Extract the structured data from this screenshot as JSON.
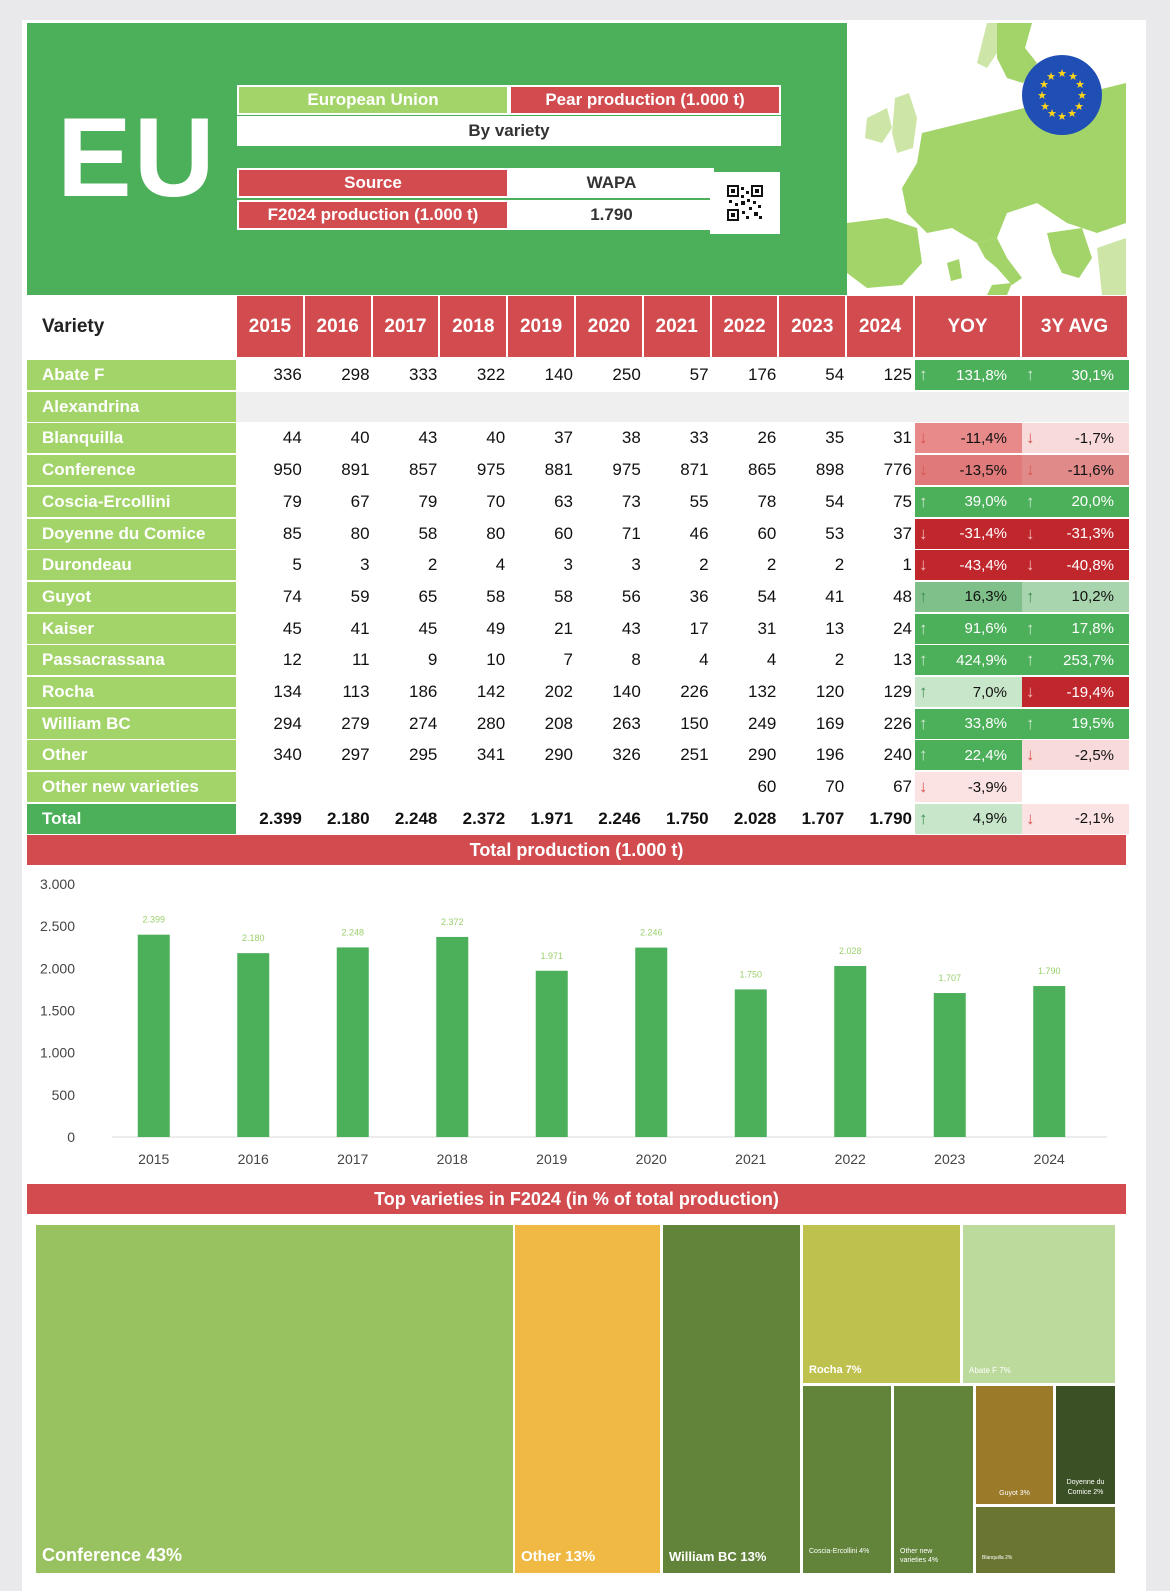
{
  "header": {
    "region_code": "EU",
    "region_name": "European Union",
    "product": "Pear production (1.000 t)",
    "breakdown": "By variety",
    "source_label": "Source",
    "source_value": "WAPA",
    "production_label": "F2024 production (1.000 t)",
    "production_value": "1.790"
  },
  "table": {
    "variety_header": "Variety",
    "years": [
      "2015",
      "2016",
      "2017",
      "2018",
      "2019",
      "2020",
      "2021",
      "2022",
      "2023",
      "2024"
    ],
    "yoy_header": "YOY",
    "avg_header": "3Y AVG",
    "rows": [
      {
        "name": "Abate F",
        "values": [
          "336",
          "298",
          "333",
          "322",
          "140",
          "250",
          "57",
          "176",
          "54",
          "125"
        ],
        "yoy": "131,8%",
        "yoy_dir": "up",
        "yoy_color": "#4caf5a",
        "avg": "30,1%",
        "avg_dir": "up",
        "avg_color": "#4caf5a"
      },
      {
        "name": "Alexandrina",
        "values": [
          "",
          "",
          "",
          "",
          "",
          "",
          "",
          "",
          "",
          ""
        ],
        "yoy": "",
        "yoy_dir": "",
        "yoy_color": "#efefef",
        "avg": "",
        "avg_dir": "",
        "avg_color": "#efefef"
      },
      {
        "name": "Blanquilla",
        "values": [
          "44",
          "40",
          "43",
          "40",
          "37",
          "38",
          "33",
          "26",
          "35",
          "31"
        ],
        "yoy": "-11,4%",
        "yoy_dir": "down",
        "yoy_color": "#e98a8a",
        "avg": "-1,7%",
        "avg_dir": "down",
        "avg_color": "#f8dada"
      },
      {
        "name": "Conference",
        "values": [
          "950",
          "891",
          "857",
          "975",
          "881",
          "975",
          "871",
          "865",
          "898",
          "776"
        ],
        "yoy": "-13,5%",
        "yoy_dir": "down",
        "yoy_color": "#e07a7a",
        "avg": "-11,6%",
        "avg_dir": "down",
        "avg_color": "#e08a8a"
      },
      {
        "name": "Coscia-Ercollini",
        "values": [
          "79",
          "67",
          "79",
          "70",
          "63",
          "73",
          "55",
          "78",
          "54",
          "75"
        ],
        "yoy": "39,0%",
        "yoy_dir": "up",
        "yoy_color": "#4caf5a",
        "avg": "20,0%",
        "avg_dir": "up",
        "avg_color": "#4caf5a"
      },
      {
        "name": "Doyenne du Comice",
        "values": [
          "85",
          "80",
          "58",
          "80",
          "60",
          "71",
          "46",
          "60",
          "53",
          "37"
        ],
        "yoy": "-31,4%",
        "yoy_dir": "down",
        "yoy_color": "#c0272d",
        "avg": "-31,3%",
        "avg_dir": "down",
        "avg_color": "#c0272d"
      },
      {
        "name": "Durondeau",
        "values": [
          "5",
          "3",
          "2",
          "4",
          "3",
          "3",
          "2",
          "2",
          "2",
          "1"
        ],
        "yoy": "-43,4%",
        "yoy_dir": "down",
        "yoy_color": "#c0272d",
        "avg": "-40,8%",
        "avg_dir": "down",
        "avg_color": "#c0272d"
      },
      {
        "name": "Guyot",
        "values": [
          "74",
          "59",
          "65",
          "58",
          "58",
          "56",
          "36",
          "54",
          "41",
          "48"
        ],
        "yoy": "16,3%",
        "yoy_dir": "up",
        "yoy_color": "#7fc08a",
        "avg": "10,2%",
        "avg_dir": "up",
        "avg_color": "#a9d5ae"
      },
      {
        "name": "Kaiser",
        "values": [
          "45",
          "41",
          "45",
          "49",
          "21",
          "43",
          "17",
          "31",
          "13",
          "24"
        ],
        "yoy": "91,6%",
        "yoy_dir": "up",
        "yoy_color": "#4caf5a",
        "avg": "17,8%",
        "avg_dir": "up",
        "avg_color": "#4caf5a"
      },
      {
        "name": "Passacrassana",
        "values": [
          "12",
          "11",
          "9",
          "10",
          "7",
          "8",
          "4",
          "4",
          "2",
          "13"
        ],
        "yoy": "424,9%",
        "yoy_dir": "up",
        "yoy_color": "#4caf5a",
        "avg": "253,7%",
        "avg_dir": "up",
        "avg_color": "#4caf5a"
      },
      {
        "name": "Rocha",
        "values": [
          "134",
          "113",
          "186",
          "142",
          "202",
          "140",
          "226",
          "132",
          "120",
          "129"
        ],
        "yoy": "7,0%",
        "yoy_dir": "up",
        "yoy_color": "#c8e6c9",
        "avg": "-19,4%",
        "avg_dir": "down",
        "avg_color": "#c0272d"
      },
      {
        "name": "William BC",
        "values": [
          "294",
          "279",
          "274",
          "280",
          "208",
          "263",
          "150",
          "249",
          "169",
          "226"
        ],
        "yoy": "33,8%",
        "yoy_dir": "up",
        "yoy_color": "#4caf5a",
        "avg": "19,5%",
        "avg_dir": "up",
        "avg_color": "#4caf5a"
      },
      {
        "name": "Other",
        "values": [
          "340",
          "297",
          "295",
          "341",
          "290",
          "326",
          "251",
          "290",
          "196",
          "240"
        ],
        "yoy": "22,4%",
        "yoy_dir": "up",
        "yoy_color": "#4caf5a",
        "avg": "-2,5%",
        "avg_dir": "down",
        "avg_color": "#f8dada"
      },
      {
        "name": "Other new varieties",
        "values": [
          "",
          "",
          "",
          "",
          "",
          "",
          "",
          "60",
          "70",
          "67"
        ],
        "yoy": "-3,9%",
        "yoy_dir": "down",
        "yoy_color": "#fbe3e3",
        "avg": "",
        "avg_dir": "",
        "avg_color": "#ffffff"
      }
    ],
    "total": {
      "name": "Total",
      "values": [
        "2.399",
        "2.180",
        "2.248",
        "2.372",
        "1.971",
        "2.246",
        "1.750",
        "2.028",
        "1.707",
        "1.790"
      ],
      "yoy": "4,9%",
      "yoy_dir": "up",
      "yoy_color": "#c8e6c9",
      "avg": "-2,1%",
      "avg_dir": "down",
      "avg_color": "#fbe3e3"
    }
  },
  "sections": {
    "total_production": "Total production (1.000 t)",
    "top_varieties": "Top varieties in F2024 (in % of total production)"
  },
  "colors": {
    "green": "#4caf5a",
    "light_green": "#a3d46a",
    "red": "#d14b4f",
    "arrow_up": "#6ab07a",
    "arrow_down": "#d9534f"
  },
  "chart_data": [
    {
      "type": "bar",
      "title": "Total production (1.000 t)",
      "categories": [
        "2015",
        "2016",
        "2017",
        "2018",
        "2019",
        "2020",
        "2021",
        "2022",
        "2023",
        "2024"
      ],
      "values": [
        2399,
        2180,
        2248,
        2372,
        1971,
        2246,
        1750,
        2028,
        1707,
        1790
      ],
      "value_labels": [
        "2.399",
        "2.180",
        "2.248",
        "2.372",
        "1.971",
        "2.246",
        "1.750",
        "2.028",
        "1.707",
        "1.790"
      ],
      "ylim": [
        0,
        3000
      ],
      "yticks": [
        0,
        500,
        1000,
        1500,
        2000,
        2500,
        3000
      ],
      "ytick_labels": [
        "0",
        "500",
        "1.000",
        "1.500",
        "2.000",
        "2.500",
        "3.000"
      ],
      "bar_color": "#4caf5a",
      "xlabel": "",
      "ylabel": ""
    },
    {
      "type": "treemap",
      "title": "Top varieties in F2024 (in % of total production)",
      "items": [
        {
          "label": "Conference 43%",
          "name": "Conference",
          "value": 43,
          "color": "#98c25f"
        },
        {
          "label": "Other 13%",
          "name": "Other",
          "value": 13,
          "color": "#efb944"
        },
        {
          "label": "William BC 13%",
          "name": "William BC",
          "value": 13,
          "color": "#61843a"
        },
        {
          "label": "Rocha 7%",
          "name": "Rocha",
          "value": 7,
          "color": "#bfc14f"
        },
        {
          "label": "Abate F 7%",
          "name": "Abate F",
          "value": 7,
          "color": "#bcda9c"
        },
        {
          "label": "Coscia-Ercollini 4%",
          "name": "Coscia-Ercollini",
          "value": 4,
          "color": "#61843a"
        },
        {
          "label": "Other new varieties 4%",
          "name": "Other new varieties",
          "value": 4,
          "color": "#61843a"
        },
        {
          "label": "Guyot 3%",
          "name": "Guyot",
          "value": 3,
          "color": "#9b7a29"
        },
        {
          "label": "Doyenne du Comice 2%",
          "name": "Doyenne du Comice",
          "value": 2,
          "color": "#3b5125"
        },
        {
          "label": "Blanquilla 2%",
          "name": "Blanquilla",
          "value": 2,
          "color": "#6a7532"
        }
      ]
    }
  ]
}
